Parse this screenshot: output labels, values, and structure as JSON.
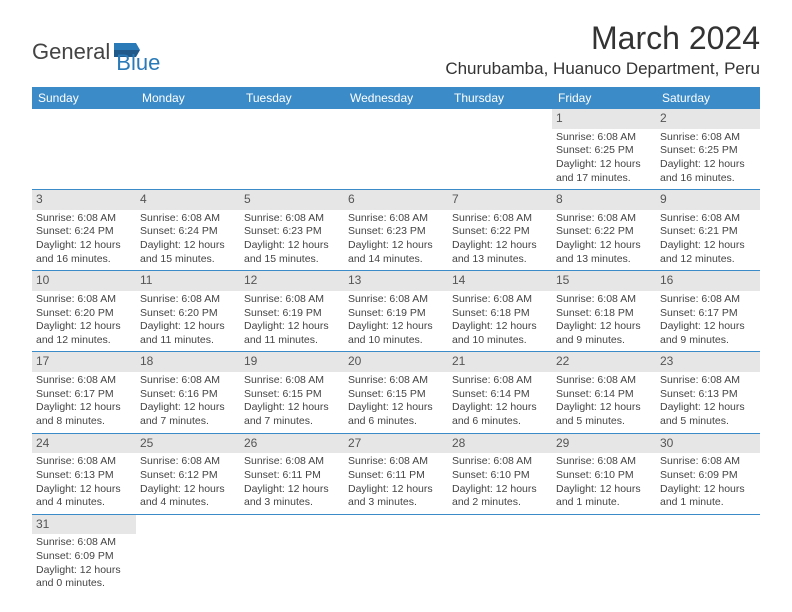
{
  "logo": {
    "text_general": "General",
    "text_blue": "Blue",
    "shape_color": "#2a7ab8"
  },
  "title": "March 2024",
  "location": "Churubamba, Huanuco Department, Peru",
  "header_bg": "#3b8bc9",
  "day_headers": [
    "Sunday",
    "Monday",
    "Tuesday",
    "Wednesday",
    "Thursday",
    "Friday",
    "Saturday"
  ],
  "weeks": [
    [
      null,
      null,
      null,
      null,
      null,
      {
        "n": "1",
        "sr": "Sunrise: 6:08 AM",
        "ss": "Sunset: 6:25 PM",
        "d1": "Daylight: 12 hours",
        "d2": "and 17 minutes."
      },
      {
        "n": "2",
        "sr": "Sunrise: 6:08 AM",
        "ss": "Sunset: 6:25 PM",
        "d1": "Daylight: 12 hours",
        "d2": "and 16 minutes."
      }
    ],
    [
      {
        "n": "3",
        "sr": "Sunrise: 6:08 AM",
        "ss": "Sunset: 6:24 PM",
        "d1": "Daylight: 12 hours",
        "d2": "and 16 minutes."
      },
      {
        "n": "4",
        "sr": "Sunrise: 6:08 AM",
        "ss": "Sunset: 6:24 PM",
        "d1": "Daylight: 12 hours",
        "d2": "and 15 minutes."
      },
      {
        "n": "5",
        "sr": "Sunrise: 6:08 AM",
        "ss": "Sunset: 6:23 PM",
        "d1": "Daylight: 12 hours",
        "d2": "and 15 minutes."
      },
      {
        "n": "6",
        "sr": "Sunrise: 6:08 AM",
        "ss": "Sunset: 6:23 PM",
        "d1": "Daylight: 12 hours",
        "d2": "and 14 minutes."
      },
      {
        "n": "7",
        "sr": "Sunrise: 6:08 AM",
        "ss": "Sunset: 6:22 PM",
        "d1": "Daylight: 12 hours",
        "d2": "and 13 minutes."
      },
      {
        "n": "8",
        "sr": "Sunrise: 6:08 AM",
        "ss": "Sunset: 6:22 PM",
        "d1": "Daylight: 12 hours",
        "d2": "and 13 minutes."
      },
      {
        "n": "9",
        "sr": "Sunrise: 6:08 AM",
        "ss": "Sunset: 6:21 PM",
        "d1": "Daylight: 12 hours",
        "d2": "and 12 minutes."
      }
    ],
    [
      {
        "n": "10",
        "sr": "Sunrise: 6:08 AM",
        "ss": "Sunset: 6:20 PM",
        "d1": "Daylight: 12 hours",
        "d2": "and 12 minutes."
      },
      {
        "n": "11",
        "sr": "Sunrise: 6:08 AM",
        "ss": "Sunset: 6:20 PM",
        "d1": "Daylight: 12 hours",
        "d2": "and 11 minutes."
      },
      {
        "n": "12",
        "sr": "Sunrise: 6:08 AM",
        "ss": "Sunset: 6:19 PM",
        "d1": "Daylight: 12 hours",
        "d2": "and 11 minutes."
      },
      {
        "n": "13",
        "sr": "Sunrise: 6:08 AM",
        "ss": "Sunset: 6:19 PM",
        "d1": "Daylight: 12 hours",
        "d2": "and 10 minutes."
      },
      {
        "n": "14",
        "sr": "Sunrise: 6:08 AM",
        "ss": "Sunset: 6:18 PM",
        "d1": "Daylight: 12 hours",
        "d2": "and 10 minutes."
      },
      {
        "n": "15",
        "sr": "Sunrise: 6:08 AM",
        "ss": "Sunset: 6:18 PM",
        "d1": "Daylight: 12 hours",
        "d2": "and 9 minutes."
      },
      {
        "n": "16",
        "sr": "Sunrise: 6:08 AM",
        "ss": "Sunset: 6:17 PM",
        "d1": "Daylight: 12 hours",
        "d2": "and 9 minutes."
      }
    ],
    [
      {
        "n": "17",
        "sr": "Sunrise: 6:08 AM",
        "ss": "Sunset: 6:17 PM",
        "d1": "Daylight: 12 hours",
        "d2": "and 8 minutes."
      },
      {
        "n": "18",
        "sr": "Sunrise: 6:08 AM",
        "ss": "Sunset: 6:16 PM",
        "d1": "Daylight: 12 hours",
        "d2": "and 7 minutes."
      },
      {
        "n": "19",
        "sr": "Sunrise: 6:08 AM",
        "ss": "Sunset: 6:15 PM",
        "d1": "Daylight: 12 hours",
        "d2": "and 7 minutes."
      },
      {
        "n": "20",
        "sr": "Sunrise: 6:08 AM",
        "ss": "Sunset: 6:15 PM",
        "d1": "Daylight: 12 hours",
        "d2": "and 6 minutes."
      },
      {
        "n": "21",
        "sr": "Sunrise: 6:08 AM",
        "ss": "Sunset: 6:14 PM",
        "d1": "Daylight: 12 hours",
        "d2": "and 6 minutes."
      },
      {
        "n": "22",
        "sr": "Sunrise: 6:08 AM",
        "ss": "Sunset: 6:14 PM",
        "d1": "Daylight: 12 hours",
        "d2": "and 5 minutes."
      },
      {
        "n": "23",
        "sr": "Sunrise: 6:08 AM",
        "ss": "Sunset: 6:13 PM",
        "d1": "Daylight: 12 hours",
        "d2": "and 5 minutes."
      }
    ],
    [
      {
        "n": "24",
        "sr": "Sunrise: 6:08 AM",
        "ss": "Sunset: 6:13 PM",
        "d1": "Daylight: 12 hours",
        "d2": "and 4 minutes."
      },
      {
        "n": "25",
        "sr": "Sunrise: 6:08 AM",
        "ss": "Sunset: 6:12 PM",
        "d1": "Daylight: 12 hours",
        "d2": "and 4 minutes."
      },
      {
        "n": "26",
        "sr": "Sunrise: 6:08 AM",
        "ss": "Sunset: 6:11 PM",
        "d1": "Daylight: 12 hours",
        "d2": "and 3 minutes."
      },
      {
        "n": "27",
        "sr": "Sunrise: 6:08 AM",
        "ss": "Sunset: 6:11 PM",
        "d1": "Daylight: 12 hours",
        "d2": "and 3 minutes."
      },
      {
        "n": "28",
        "sr": "Sunrise: 6:08 AM",
        "ss": "Sunset: 6:10 PM",
        "d1": "Daylight: 12 hours",
        "d2": "and 2 minutes."
      },
      {
        "n": "29",
        "sr": "Sunrise: 6:08 AM",
        "ss": "Sunset: 6:10 PM",
        "d1": "Daylight: 12 hours",
        "d2": "and 1 minute."
      },
      {
        "n": "30",
        "sr": "Sunrise: 6:08 AM",
        "ss": "Sunset: 6:09 PM",
        "d1": "Daylight: 12 hours",
        "d2": "and 1 minute."
      }
    ],
    [
      {
        "n": "31",
        "sr": "Sunrise: 6:08 AM",
        "ss": "Sunset: 6:09 PM",
        "d1": "Daylight: 12 hours",
        "d2": "and 0 minutes."
      },
      null,
      null,
      null,
      null,
      null,
      null
    ]
  ]
}
